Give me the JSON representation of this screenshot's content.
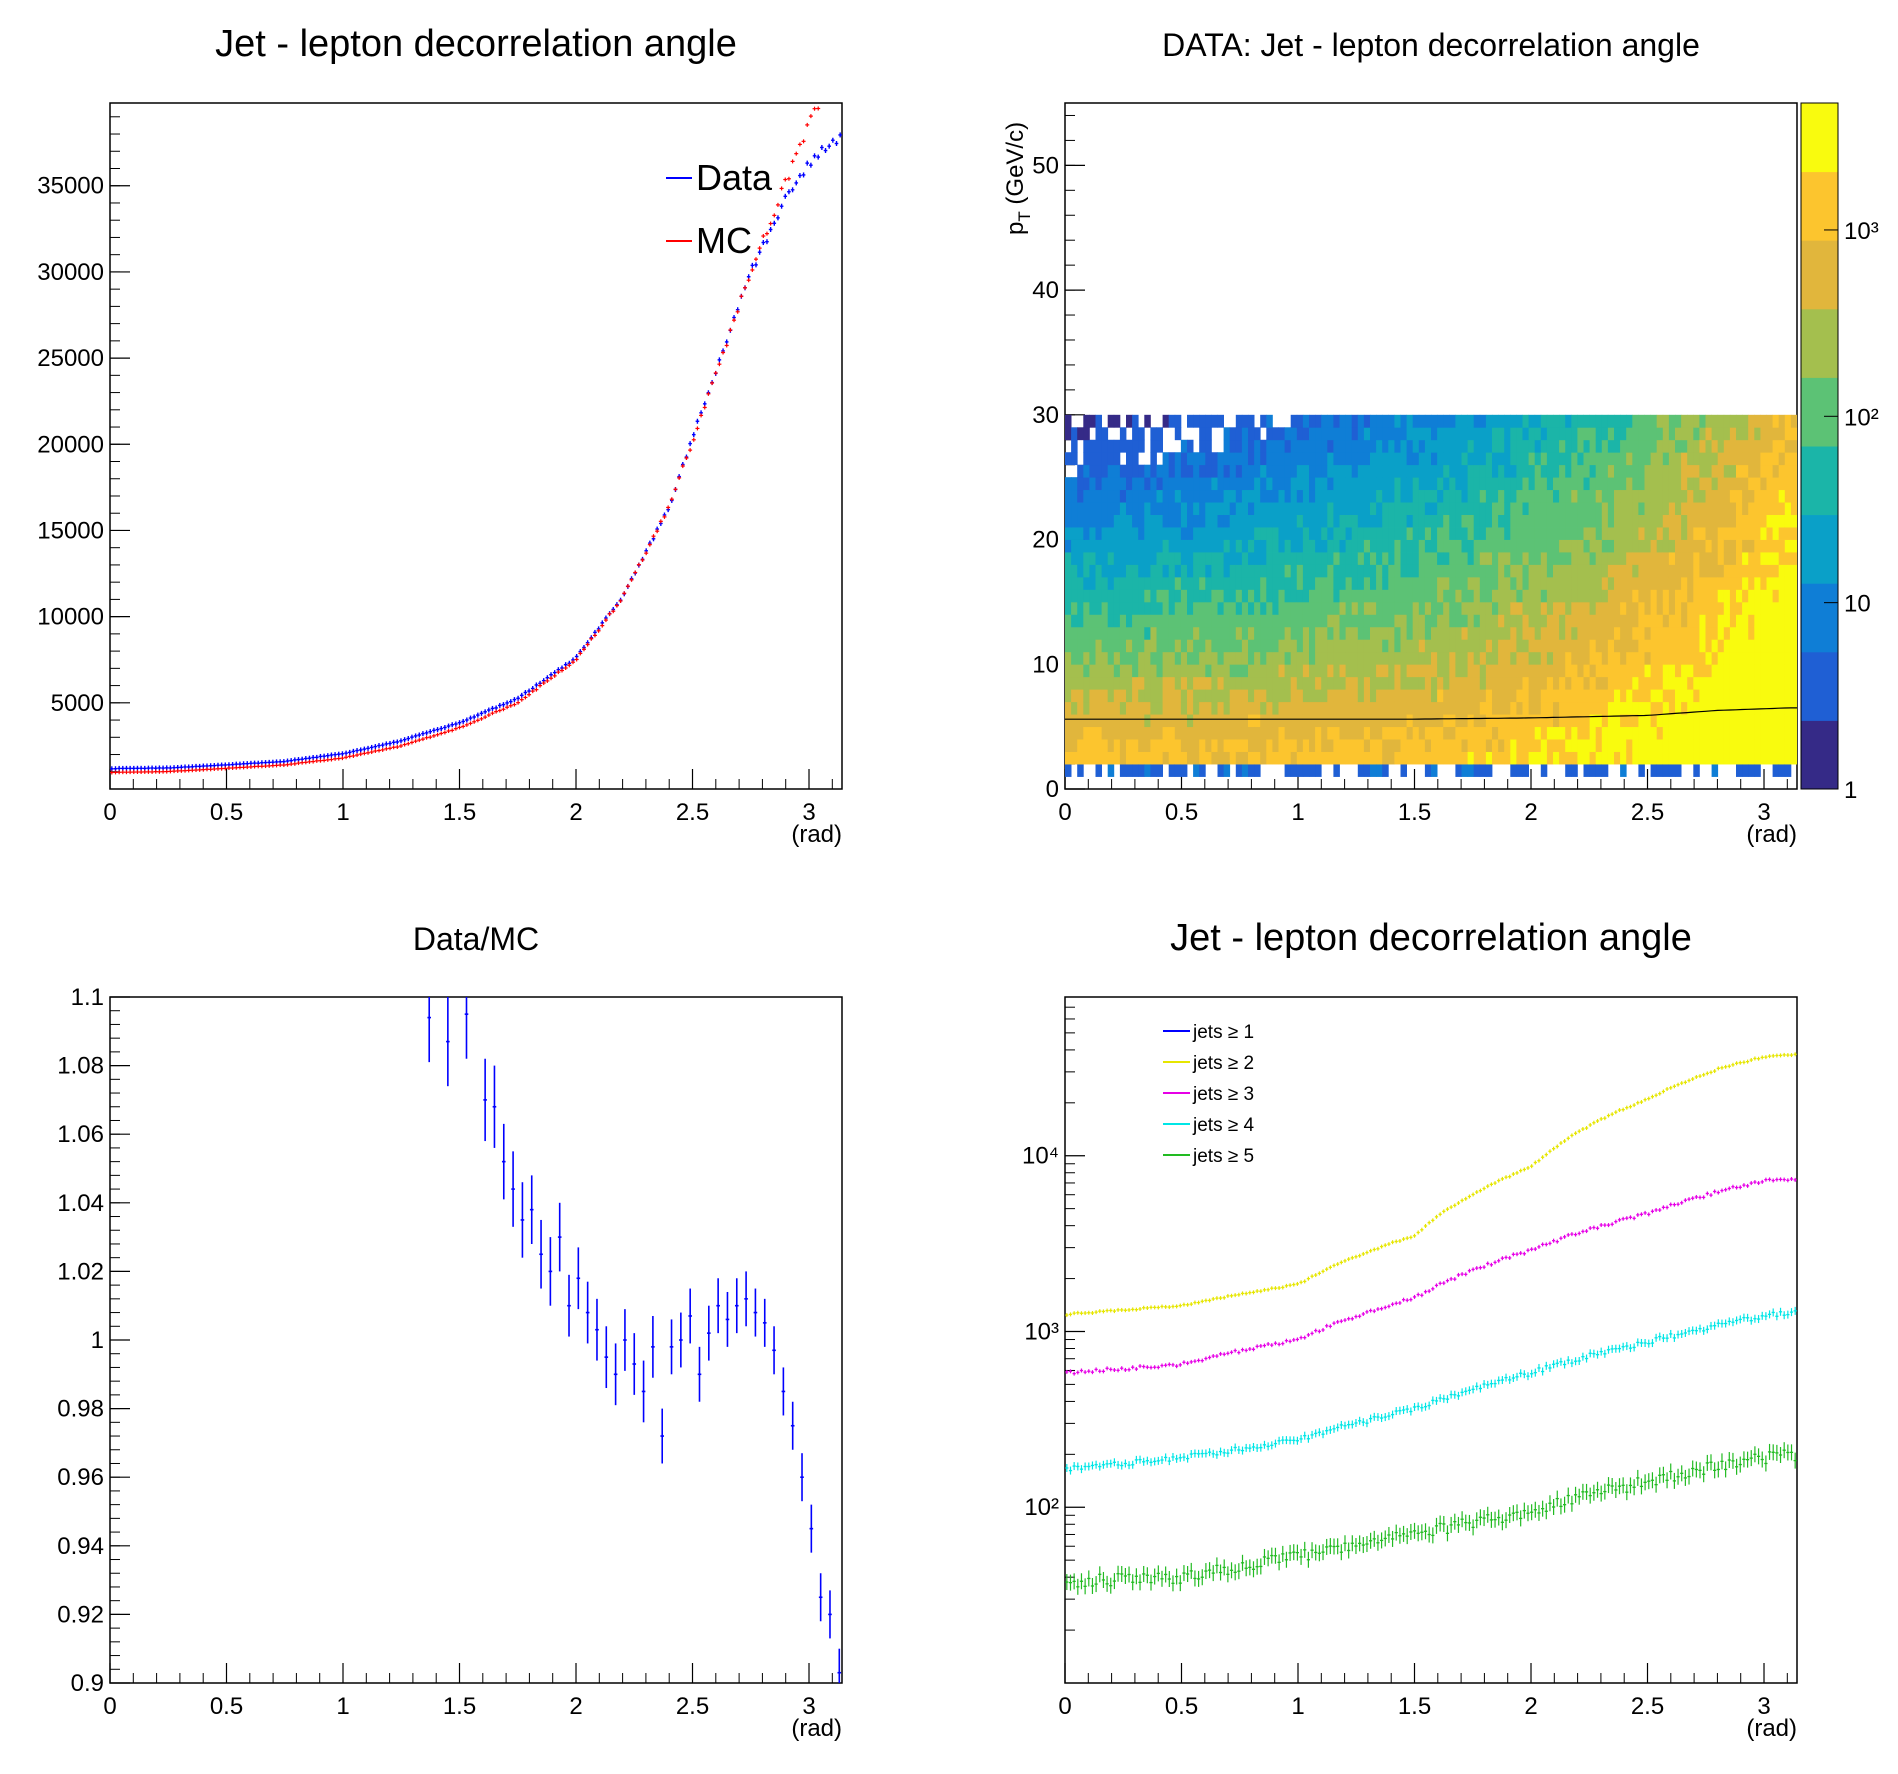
{
  "chart_data": [
    {
      "type": "scatter",
      "title": "Jet - lepton decorrelation angle",
      "xlabel": "(rad)",
      "ylabel": "",
      "xlim": [
        0,
        3.1416
      ],
      "ylim": [
        0,
        39800
      ],
      "x_ticks": [
        "0",
        "0.5",
        "1",
        "1.5",
        "2",
        "2.5",
        "3"
      ],
      "y_ticks": [
        "5000",
        "10000",
        "15000",
        "20000",
        "25000",
        "30000",
        "35000"
      ],
      "legend": {
        "placement": "top-right",
        "entries": [
          "Data",
          "MC"
        ]
      },
      "colors": {
        "Data": "#0000ff",
        "MC": "#ff0000"
      },
      "series": [
        {
          "name": "Data",
          "x": [
            0,
            0.25,
            0.5,
            0.75,
            1.0,
            1.25,
            1.5,
            1.75,
            2.0,
            2.2,
            2.4,
            2.6,
            2.75,
            2.9,
            3.0,
            3.1,
            3.14
          ],
          "y": [
            1180,
            1220,
            1400,
            1600,
            2050,
            2800,
            3850,
            5250,
            7600,
            11100,
            16400,
            24300,
            30000,
            34200,
            36200,
            37600,
            37700
          ]
        },
        {
          "name": "MC",
          "x": [
            0,
            0.25,
            0.5,
            0.75,
            1.0,
            1.25,
            1.5,
            1.75,
            2.0,
            2.2,
            2.4,
            2.6,
            2.75,
            2.9,
            3.0,
            3.05
          ],
          "y": [
            960,
            1010,
            1200,
            1400,
            1800,
            2500,
            3550,
            5000,
            7500,
            11100,
            16400,
            24000,
            30000,
            35200,
            38600,
            40000
          ]
        }
      ]
    },
    {
      "type": "heatmap",
      "title": "DATA: Jet - lepton decorrelation angle",
      "xlabel": "(rad)",
      "ylabel": "p_T (GeV/c)",
      "xlim": [
        0,
        3.1416
      ],
      "ylim": [
        0,
        55
      ],
      "x_ticks": [
        "0",
        "0.5",
        "1",
        "1.5",
        "2",
        "2.5",
        "3"
      ],
      "y_ticks": [
        "0",
        "10",
        "20",
        "30",
        "40",
        "50"
      ],
      "z_scale": "log",
      "z_ticks": [
        "1",
        "10",
        "10²",
        "10³"
      ],
      "palette": [
        "#352a87",
        "#1f5fd4",
        "#0f7ed6",
        "#0aa0c8",
        "#1bb5a8",
        "#5cc275",
        "#a4bf4e",
        "#e1b63c",
        "#fcc52e",
        "#f9fb0e"
      ],
      "profile_color": "#000000",
      "profile": {
        "x": [
          0,
          0.5,
          1.0,
          1.5,
          2.0,
          2.5,
          2.8,
          3.1
        ],
        "y": [
          5.6,
          5.6,
          5.6,
          5.6,
          5.7,
          5.9,
          6.3,
          6.5
        ]
      }
    },
    {
      "type": "scatter",
      "title": "Data/MC",
      "xlabel": "(rad)",
      "ylabel": "",
      "xlim": [
        0,
        3.1416
      ],
      "ylim": [
        0.9,
        1.1
      ],
      "x_ticks": [
        "0",
        "0.5",
        "1",
        "1.5",
        "2",
        "2.5",
        "3"
      ],
      "y_ticks": [
        "0.9",
        "0.92",
        "0.94",
        "0.96",
        "0.98",
        "1",
        "1.02",
        "1.04",
        "1.06",
        "1.08",
        "1.1"
      ],
      "colors": {
        "ratio": "#0000ff"
      },
      "series": [
        {
          "x": [
            1.37,
            1.45,
            1.53,
            1.61,
            1.65,
            1.69,
            1.73,
            1.77,
            1.81,
            1.85,
            1.89,
            1.93,
            1.97,
            2.01,
            2.05,
            2.09,
            2.13,
            2.17,
            2.21,
            2.25,
            2.29,
            2.33,
            2.37,
            2.41,
            2.45,
            2.49,
            2.53,
            2.57,
            2.61,
            2.65,
            2.69,
            2.73,
            2.77,
            2.81,
            2.85,
            2.89,
            2.93,
            2.97,
            3.01,
            3.05,
            3.09,
            3.13
          ],
          "y": [
            1.094,
            1.087,
            1.095,
            1.07,
            1.068,
            1.052,
            1.044,
            1.035,
            1.038,
            1.025,
            1.02,
            1.03,
            1.01,
            1.018,
            1.008,
            1.003,
            0.995,
            0.99,
            1.0,
            0.993,
            0.985,
            0.998,
            0.972,
            0.998,
            1.0,
            1.007,
            0.99,
            1.002,
            1.01,
            1.006,
            1.01,
            1.012,
            1.008,
            1.005,
            0.997,
            0.985,
            0.975,
            0.96,
            0.945,
            0.925,
            0.92,
            0.903
          ],
          "err": [
            0.013,
            0.013,
            0.013,
            0.012,
            0.012,
            0.011,
            0.011,
            0.011,
            0.01,
            0.01,
            0.01,
            0.01,
            0.009,
            0.009,
            0.009,
            0.009,
            0.009,
            0.009,
            0.009,
            0.009,
            0.009,
            0.009,
            0.008,
            0.008,
            0.008,
            0.008,
            0.008,
            0.008,
            0.008,
            0.008,
            0.008,
            0.008,
            0.007,
            0.007,
            0.007,
            0.007,
            0.007,
            0.007,
            0.007,
            0.007,
            0.007,
            0.007
          ]
        }
      ]
    },
    {
      "type": "scatter",
      "title": "Jet - lepton decorrelation angle",
      "xlabel": "(rad)",
      "ylabel": "",
      "xlim": [
        0,
        3.1416
      ],
      "ylim": [
        10,
        80000
      ],
      "y_scale": "log",
      "x_ticks": [
        "0",
        "0.5",
        "1",
        "1.5",
        "2",
        "2.5",
        "3"
      ],
      "y_ticks": [
        "10²",
        "10³",
        "10⁴"
      ],
      "legend": {
        "placement": "top-left",
        "entries": [
          "jets ≥ 1",
          "jets ≥ 2",
          "jets ≥ 3",
          "jets ≥ 4",
          "jets ≥ 5"
        ]
      },
      "colors": {
        "jets ≥ 1": "#0000ff",
        "jets ≥ 2": "#e6e600",
        "jets ≥ 3": "#e600e6",
        "jets ≥ 4": "#00e6e6",
        "jets ≥ 5": "#22bb22"
      },
      "series": [
        {
          "name": "jets ≥ 2",
          "x": [
            0,
            0.5,
            1.0,
            1.5,
            2.0,
            2.5,
            2.8,
            3.0,
            3.14
          ],
          "y": [
            1250,
            1400,
            1850,
            3500,
            8600,
            21000,
            31000,
            36500,
            37500
          ]
        },
        {
          "name": "jets ≥ 3",
          "x": [
            0,
            0.5,
            1.0,
            1.5,
            2.0,
            2.5,
            2.8,
            3.0,
            3.14
          ],
          "y": [
            580,
            650,
            900,
            1550,
            2900,
            4700,
            6200,
            7200,
            7400
          ]
        },
        {
          "name": "jets ≥ 4",
          "x": [
            0,
            0.5,
            1.0,
            1.5,
            2.0,
            2.5,
            2.8,
            3.0,
            3.14
          ],
          "y": [
            165,
            190,
            240,
            360,
            580,
            870,
            1080,
            1230,
            1280
          ]
        },
        {
          "name": "jets ≥ 5",
          "x": [
            0,
            0.5,
            1.0,
            1.5,
            2.0,
            2.5,
            2.8,
            3.0,
            3.14
          ],
          "y": [
            38,
            40,
            52,
            70,
            95,
            140,
            170,
            190,
            200
          ]
        }
      ]
    }
  ]
}
